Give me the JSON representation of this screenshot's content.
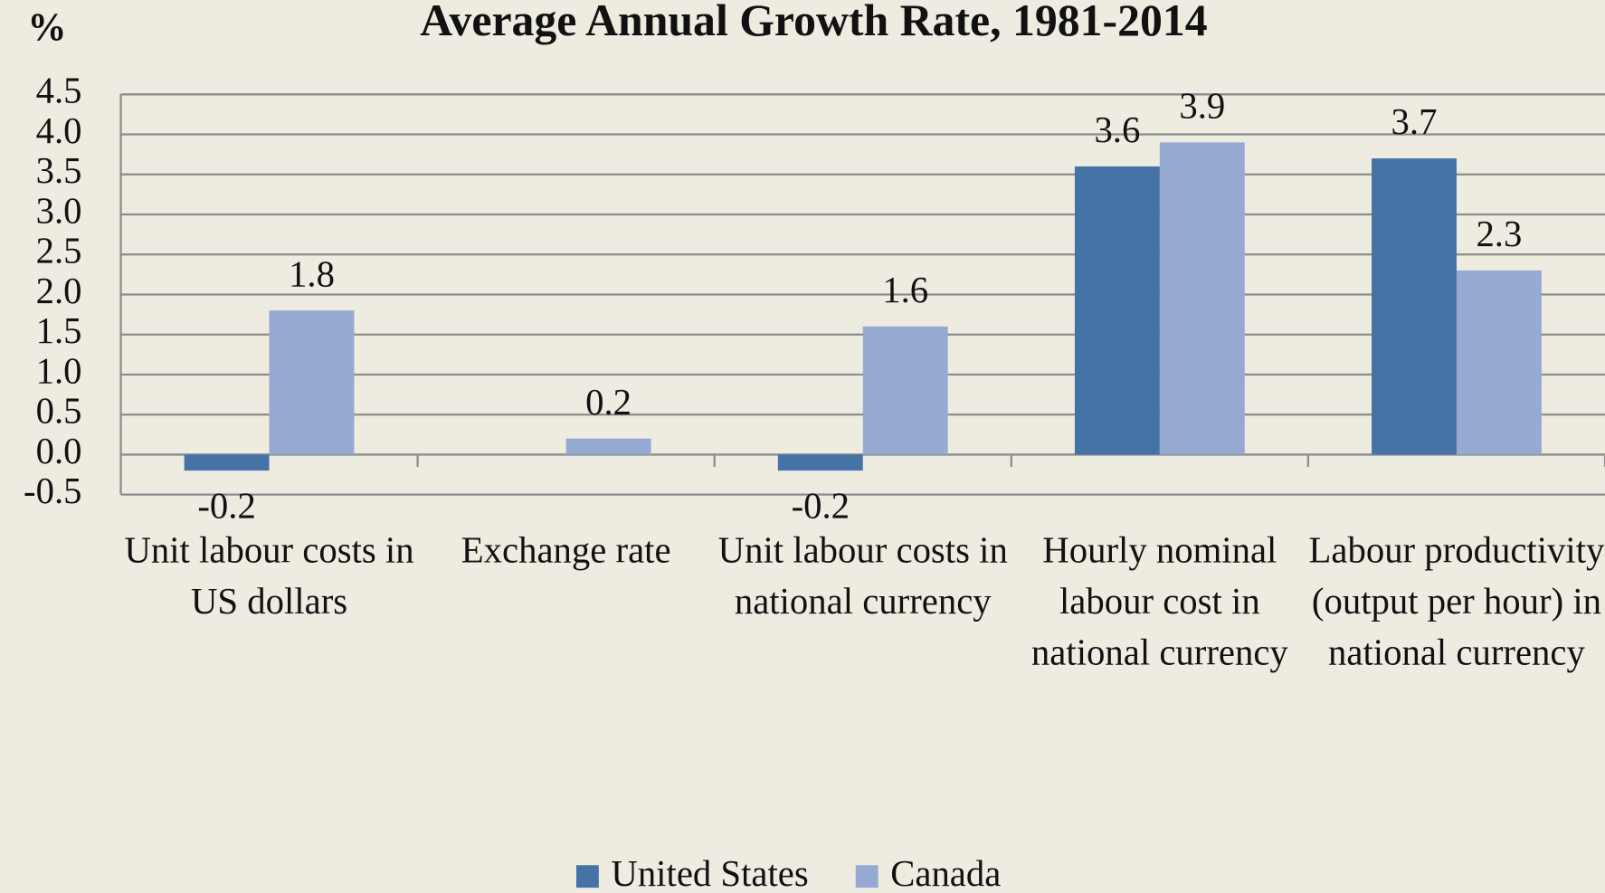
{
  "chart_data": {
    "type": "bar",
    "title": "Average Annual Growth Rate, 1981-2014",
    "y_label": "%",
    "categories": [
      "Unit labour costs in US dollars",
      "Exchange rate",
      "Unit labour costs in national currency",
      "Hourly nominal labour cost in national currency",
      "Labour productivity (output per hour) in national currency"
    ],
    "series": [
      {
        "name": "United States",
        "color": "#4673a6",
        "values": [
          -0.2,
          null,
          -0.2,
          3.6,
          3.7
        ]
      },
      {
        "name": "Canada",
        "color": "#95a9d1",
        "values": [
          1.8,
          0.2,
          1.6,
          3.9,
          2.3
        ]
      }
    ],
    "ylim": [
      -0.5,
      4.5
    ],
    "yticks": [
      -0.5,
      {
        "value": 0,
        "label": "0.0"
      },
      0.5,
      {
        "value": 1,
        "label": "1.0"
      },
      1.5,
      {
        "value": 2,
        "label": "2.0"
      },
      2.5,
      {
        "value": 3,
        "label": "3.0"
      },
      3.5,
      {
        "value": 4,
        "label": "4.0"
      },
      4.5
    ],
    "grid": true,
    "legend": "bottom"
  }
}
